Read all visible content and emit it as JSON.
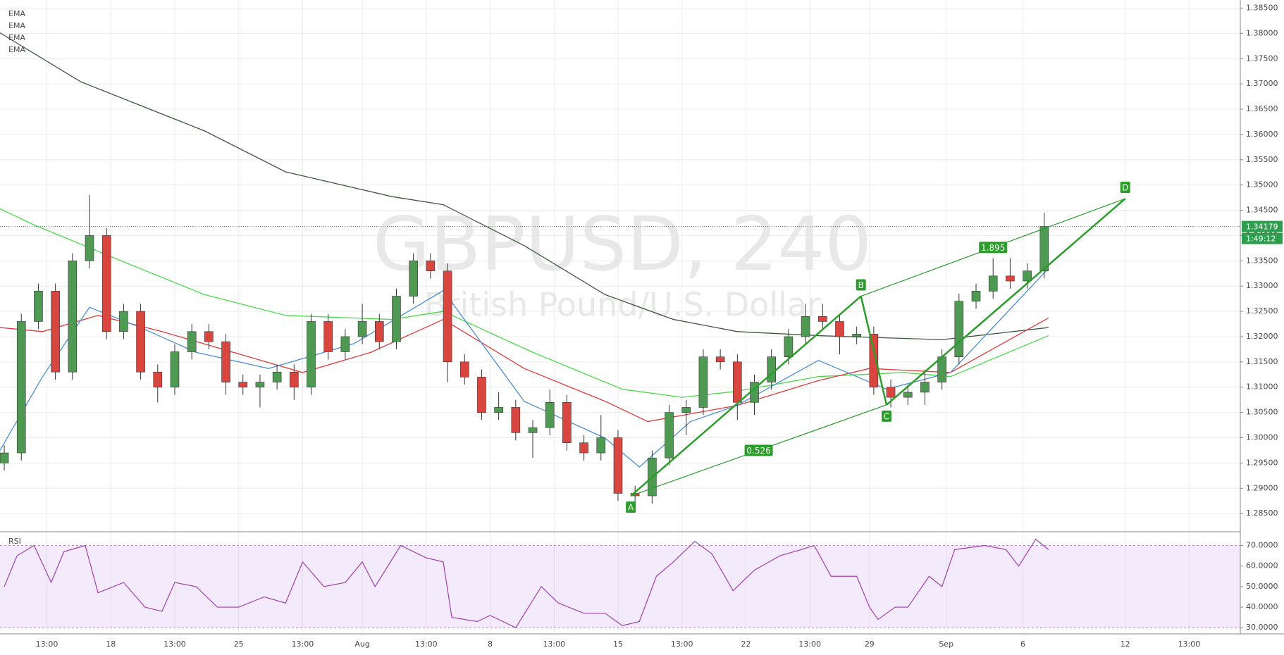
{
  "chart_data": {
    "type": "candlestick",
    "title": "GBPUSD, 240",
    "subtitle": "British Pound/U.S. Dollar",
    "xlim": [
      0,
      291
    ],
    "ylim": [
      1.2814,
      1.3866
    ],
    "yticks": [
      {
        "value": 1.285,
        "label": "1.28500"
      },
      {
        "value": 1.29,
        "label": "1.29000"
      },
      {
        "value": 1.295,
        "label": "1.29500"
      },
      {
        "value": 1.3,
        "label": "1.30000"
      },
      {
        "value": 1.305,
        "label": "1.30500"
      },
      {
        "value": 1.31,
        "label": "1.31000"
      },
      {
        "value": 1.315,
        "label": "1.31500"
      },
      {
        "value": 1.32,
        "label": "1.32000"
      },
      {
        "value": 1.325,
        "label": "1.32500"
      },
      {
        "value": 1.33,
        "label": "1.33000"
      },
      {
        "value": 1.335,
        "label": "1.33500"
      },
      {
        "value": 1.34,
        "label": "1.34000"
      },
      {
        "value": 1.345,
        "label": "1.34500"
      },
      {
        "value": 1.35,
        "label": "1.35000"
      },
      {
        "value": 1.355,
        "label": "1.35500"
      },
      {
        "value": 1.36,
        "label": "1.36000"
      },
      {
        "value": 1.365,
        "label": "1.36500"
      },
      {
        "value": 1.37,
        "label": "1.37000"
      },
      {
        "value": 1.375,
        "label": "1.37500"
      },
      {
        "value": 1.38,
        "label": "1.38000"
      },
      {
        "value": 1.385,
        "label": "1.38500"
      }
    ],
    "xticks": [
      {
        "value": 11,
        "label": "13:00"
      },
      {
        "value": 26,
        "label": "18"
      },
      {
        "value": 41,
        "label": "13:00"
      },
      {
        "value": 56,
        "label": "25"
      },
      {
        "value": 71,
        "label": "13:00"
      },
      {
        "value": 85,
        "label": "Aug"
      },
      {
        "value": 100,
        "label": "13:00"
      },
      {
        "value": 115,
        "label": "8"
      },
      {
        "value": 130,
        "label": "13:00"
      },
      {
        "value": 145,
        "label": "15"
      },
      {
        "value": 160,
        "label": "13:00"
      },
      {
        "value": 175,
        "label": "22"
      },
      {
        "value": 190,
        "label": "13:00"
      },
      {
        "value": 204,
        "label": "29"
      },
      {
        "value": 222,
        "label": "Sep"
      },
      {
        "value": 240,
        "label": "6"
      },
      {
        "value": 264,
        "label": "12"
      },
      {
        "value": 279,
        "label": "13:00"
      }
    ],
    "grid": true,
    "up_color": "#4e9a52",
    "down_color": "#d9453f",
    "candles": [
      [
        1,
        1.295,
        1.2985,
        1.2935,
        1.297
      ],
      [
        5,
        1.297,
        1.3245,
        1.2955,
        1.323
      ],
      [
        9,
        1.323,
        1.3305,
        1.3215,
        1.329
      ],
      [
        13,
        1.329,
        1.3305,
        1.3115,
        1.313
      ],
      [
        17,
        1.313,
        1.3365,
        1.3115,
        1.335
      ],
      [
        21,
        1.335,
        1.348,
        1.3335,
        1.34
      ],
      [
        25,
        1.34,
        1.3415,
        1.3195,
        1.321
      ],
      [
        29,
        1.321,
        1.3265,
        1.3195,
        1.325
      ],
      [
        33,
        1.325,
        1.3265,
        1.3115,
        1.313
      ],
      [
        37,
        1.313,
        1.3145,
        1.307,
        1.31
      ],
      [
        41,
        1.31,
        1.3185,
        1.3085,
        1.317
      ],
      [
        45,
        1.317,
        1.3225,
        1.3155,
        1.321
      ],
      [
        49,
        1.321,
        1.3225,
        1.3175,
        1.319
      ],
      [
        53,
        1.319,
        1.3205,
        1.3085,
        1.311
      ],
      [
        57,
        1.311,
        1.3125,
        1.3085,
        1.31
      ],
      [
        61,
        1.31,
        1.3125,
        1.306,
        1.311
      ],
      [
        65,
        1.311,
        1.3145,
        1.3095,
        1.313
      ],
      [
        69,
        1.313,
        1.3145,
        1.3075,
        1.31
      ],
      [
        73,
        1.31,
        1.3245,
        1.3085,
        1.323
      ],
      [
        77,
        1.323,
        1.3245,
        1.3155,
        1.317
      ],
      [
        81,
        1.317,
        1.3215,
        1.3155,
        1.32
      ],
      [
        85,
        1.32,
        1.3265,
        1.3185,
        1.323
      ],
      [
        89,
        1.323,
        1.3245,
        1.3175,
        1.319
      ],
      [
        93,
        1.319,
        1.3295,
        1.3175,
        1.328
      ],
      [
        97,
        1.328,
        1.3365,
        1.3265,
        1.335
      ],
      [
        101,
        1.335,
        1.3365,
        1.3315,
        1.333
      ],
      [
        105,
        1.333,
        1.3345,
        1.311,
        1.315
      ],
      [
        109,
        1.315,
        1.3165,
        1.3105,
        1.312
      ],
      [
        113,
        1.312,
        1.3135,
        1.3035,
        1.305
      ],
      [
        117,
        1.305,
        1.309,
        1.3035,
        1.306
      ],
      [
        121,
        1.306,
        1.3075,
        1.2995,
        1.301
      ],
      [
        125,
        1.301,
        1.3035,
        1.296,
        1.302
      ],
      [
        129,
        1.302,
        1.3095,
        1.3005,
        1.307
      ],
      [
        133,
        1.307,
        1.3085,
        1.2975,
        1.299
      ],
      [
        137,
        1.299,
        1.3005,
        1.2955,
        1.297
      ],
      [
        141,
        1.297,
        1.3045,
        1.2955,
        1.3
      ],
      [
        145,
        1.3,
        1.3015,
        1.2875,
        1.289
      ],
      [
        149,
        1.289,
        1.2905,
        1.2865,
        1.2885
      ],
      [
        153,
        1.2885,
        1.2975,
        1.287,
        1.296
      ],
      [
        157,
        1.296,
        1.3065,
        1.2945,
        1.305
      ],
      [
        161,
        1.305,
        1.3075,
        1.3005,
        1.306
      ],
      [
        165,
        1.306,
        1.3175,
        1.3045,
        1.316
      ],
      [
        169,
        1.316,
        1.3175,
        1.3135,
        1.315
      ],
      [
        173,
        1.315,
        1.3165,
        1.3035,
        1.307
      ],
      [
        177,
        1.307,
        1.3125,
        1.3045,
        1.311
      ],
      [
        181,
        1.311,
        1.3175,
        1.3095,
        1.316
      ],
      [
        185,
        1.316,
        1.3215,
        1.3145,
        1.32
      ],
      [
        189,
        1.32,
        1.3265,
        1.3185,
        1.324
      ],
      [
        193,
        1.324,
        1.3265,
        1.3215,
        1.323
      ],
      [
        197,
        1.323,
        1.3245,
        1.3165,
        1.32
      ],
      [
        201,
        1.32,
        1.322,
        1.3185,
        1.3205
      ],
      [
        205,
        1.3205,
        1.322,
        1.3085,
        1.31
      ],
      [
        209,
        1.31,
        1.3115,
        1.306,
        1.308
      ],
      [
        213,
        1.308,
        1.3105,
        1.3065,
        1.309
      ],
      [
        217,
        1.309,
        1.3135,
        1.3065,
        1.311
      ],
      [
        221,
        1.311,
        1.3175,
        1.3095,
        1.316
      ],
      [
        225,
        1.316,
        1.3285,
        1.3145,
        1.327
      ],
      [
        229,
        1.327,
        1.3305,
        1.3255,
        1.329
      ],
      [
        233,
        1.329,
        1.3355,
        1.3275,
        1.332
      ],
      [
        237,
        1.332,
        1.3355,
        1.3295,
        1.331
      ],
      [
        241,
        1.331,
        1.3345,
        1.3295,
        1.333
      ],
      [
        245,
        1.333,
        1.3445,
        1.3315,
        1.3418
      ]
    ],
    "ema_series": [
      {
        "name": "EMA",
        "color": "#3d5a3d",
        "x": [
          0,
          19,
          48,
          67,
          92,
          104,
          123,
          142,
          158,
          173,
          192,
          221,
          246
        ],
        "values": [
          1.3801,
          1.3704,
          1.3607,
          1.3526,
          1.3477,
          1.3461,
          1.338,
          1.3283,
          1.3234,
          1.321,
          1.3202,
          1.3194,
          1.3218
        ]
      },
      {
        "name": "EMA",
        "color": "#4cd84c",
        "x": [
          0,
          8,
          29,
          48,
          67,
          92,
          104,
          125,
          146,
          160,
          173,
          192,
          212,
          223,
          246
        ],
        "values": [
          1.3453,
          1.3421,
          1.3348,
          1.3283,
          1.3242,
          1.3234,
          1.325,
          1.3169,
          1.3096,
          1.308,
          1.3092,
          1.3121,
          1.3129,
          1.3121,
          1.3202
        ]
      },
      {
        "name": "EMA",
        "color": "#e03a3a",
        "x": [
          0,
          10,
          23,
          38,
          58,
          71,
          87,
          104,
          123,
          142,
          152,
          173,
          192,
          204,
          223,
          246
        ],
        "values": [
          1.3218,
          1.321,
          1.3242,
          1.321,
          1.3161,
          1.3129,
          1.3169,
          1.3234,
          1.3137,
          1.3072,
          1.3032,
          1.3064,
          1.3113,
          1.3137,
          1.3129,
          1.3237
        ]
      },
      {
        "name": "EMA",
        "color": "#4a8fd0",
        "x": [
          0,
          10,
          21,
          33,
          46,
          63,
          83,
          104,
          123,
          142,
          150,
          162,
          173,
          192,
          208,
          223,
          246
        ],
        "values": [
          1.2975,
          1.3121,
          1.3258,
          1.3218,
          1.3169,
          1.3137,
          1.3186,
          1.3291,
          1.3072,
          1.2999,
          1.2942,
          1.3032,
          1.3064,
          1.3153,
          1.3096,
          1.3129,
          1.3335
        ]
      }
    ],
    "last_price": {
      "value": 1.34179,
      "label": "1.34179"
    },
    "countdown": "1:49:12",
    "pattern": {
      "color": "#2a9d2a",
      "points": [
        {
          "label": "A",
          "x": 148,
          "y": 1.2885
        },
        {
          "label": "B",
          "x": 202,
          "y": 1.328
        },
        {
          "label": "C",
          "x": 208,
          "y": 1.3065
        },
        {
          "label": "D",
          "x": 264,
          "y": 1.3473
        }
      ],
      "ratios": [
        0.526,
        1.895
      ]
    },
    "rsi": {
      "name": "RSI",
      "color": "#a040b0",
      "ylim": [
        27,
        76
      ],
      "band": [
        30,
        70
      ],
      "yticks": [
        {
          "value": 30,
          "label": "30.0000"
        },
        {
          "value": 40,
          "label": "40.0000"
        },
        {
          "value": 50,
          "label": "50.0000"
        },
        {
          "value": 60,
          "label": "60.0000"
        },
        {
          "value": 70,
          "label": "70.0000"
        }
      ],
      "x": [
        1,
        4,
        8,
        12,
        15,
        20,
        23,
        29,
        34,
        38,
        41,
        46,
        51,
        56,
        62,
        67,
        71,
        76,
        81,
        85,
        88,
        94,
        100,
        104,
        106,
        112,
        115,
        121,
        127,
        131,
        137,
        142,
        146,
        150,
        154,
        158,
        163,
        167,
        172,
        177,
        183,
        188,
        191,
        195,
        201,
        204,
        206,
        210,
        213,
        218,
        221,
        224,
        231,
        236,
        239,
        243,
        246
      ],
      "values": [
        50,
        65,
        70,
        52,
        67,
        70,
        47,
        52,
        40,
        38,
        52,
        50,
        40,
        40,
        45,
        42,
        62,
        50,
        52,
        62,
        50,
        70,
        64,
        62,
        35,
        33,
        36,
        30,
        50,
        42,
        37,
        37,
        31,
        33,
        55,
        62,
        72,
        66,
        48,
        58,
        65,
        68,
        70,
        55,
        55,
        40,
        34,
        40,
        40,
        55,
        50,
        68,
        70,
        68,
        60,
        73,
        68
      ]
    }
  }
}
